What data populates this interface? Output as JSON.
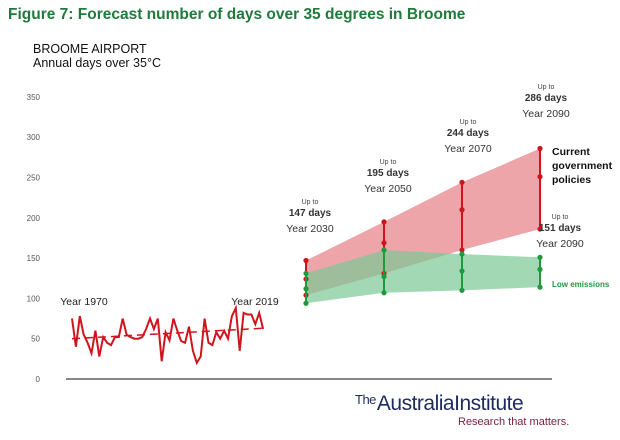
{
  "title": "Figure 7: Forecast number of days over 35 degrees in Broome",
  "chart_data": {
    "type": "line",
    "title": "BROOME AIRPORT",
    "subtitle": "Annual days over 35°C",
    "ylim": [
      0,
      350
    ],
    "yticks": [
      0,
      50,
      100,
      150,
      200,
      250,
      300,
      350
    ],
    "grid": false,
    "historical": {
      "years": [
        1970,
        2019
      ],
      "values": [
        75,
        40,
        78,
        55,
        45,
        32,
        60,
        28,
        52,
        45,
        42,
        52,
        52,
        75,
        55,
        52,
        50,
        50,
        52,
        62,
        75,
        62,
        75,
        22,
        58,
        48,
        75,
        60,
        47,
        45,
        65,
        35,
        20,
        28,
        75,
        45,
        42,
        58,
        50,
        60,
        50,
        78,
        88,
        35,
        82,
        80,
        80,
        68,
        82,
        62
      ],
      "trend": [
        50,
        63
      ],
      "labels": [
        "Year 1970",
        "Year 2019"
      ]
    },
    "projections": {
      "years": [
        2030,
        2050,
        2070,
        2090
      ],
      "current_policies": {
        "name": "Current government policies",
        "high": [
          147,
          195,
          244,
          286
        ],
        "mid": [
          124,
          169,
          210,
          251
        ],
        "low": [
          104,
          131,
          160,
          186
        ]
      },
      "low_emissions": {
        "name": "Low emissions",
        "high": [
          131,
          160,
          155,
          151
        ],
        "mid": [
          112,
          127,
          134,
          136
        ],
        "low": [
          94,
          107,
          110,
          114
        ]
      }
    },
    "annotations": [
      {
        "upto": "Up to",
        "days": "147 days",
        "year": "Year 2030"
      },
      {
        "upto": "Up to",
        "days": "195 days",
        "year": "Year 2050"
      },
      {
        "upto": "Up to",
        "days": "244 days",
        "year": "Year 2070"
      },
      {
        "upto": "Up to",
        "days": "286 days",
        "year": "Year 2090"
      },
      {
        "upto": "Up to",
        "days": "151 days",
        "year": "Year 2090"
      }
    ],
    "colors": {
      "red": "#d0141e",
      "red_fill": "#e57f84",
      "green": "#1e9a3c",
      "green_fill": "#7cc796"
    }
  },
  "logo": {
    "the": "The",
    "name": "AustraliaInstitute",
    "tagline": "Research that matters."
  }
}
